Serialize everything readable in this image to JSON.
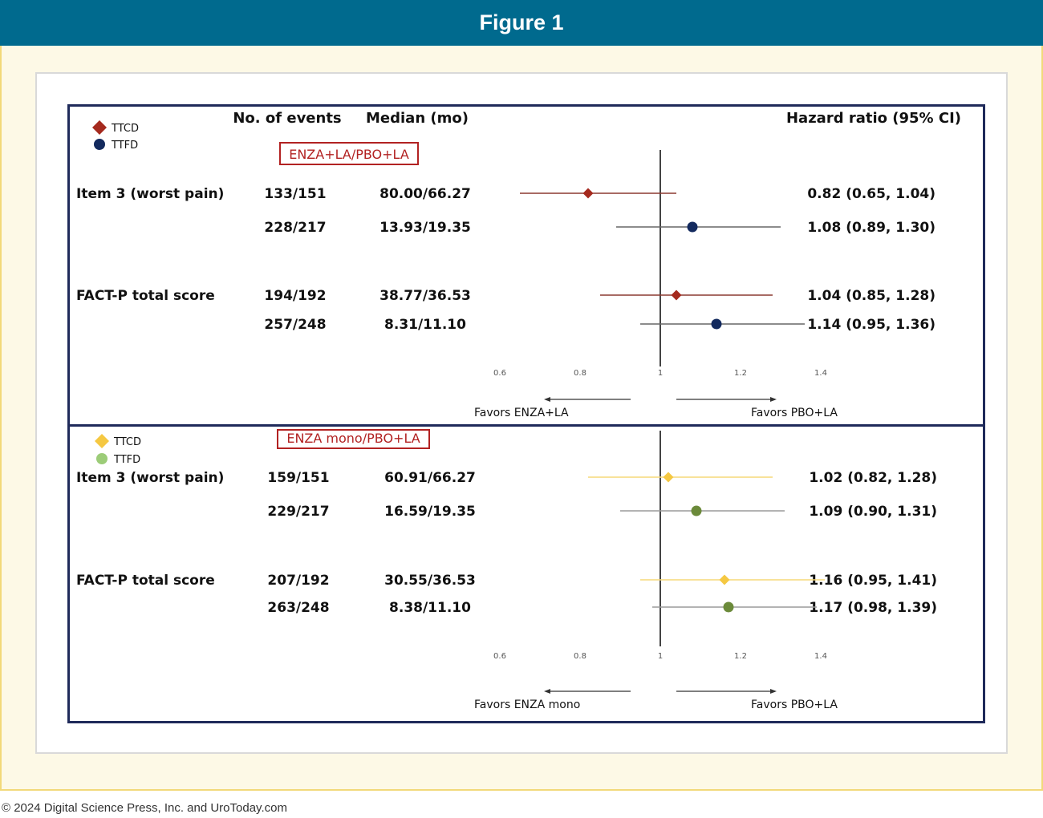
{
  "header": {
    "title": "Figure 1"
  },
  "footer": {
    "copyright": "© 2024 Digital Science Press, Inc. and UroToday.com"
  },
  "chart_data": {
    "type": "forest",
    "column_headers": {
      "events": "No. of events",
      "median": "Median (mo)",
      "hr": "Hazard ratio (95% CI)"
    },
    "x_ticks": [
      "0.6",
      "0.8",
      "1",
      "1.2",
      "1.4"
    ],
    "xlim": [
      0.6,
      1.4
    ],
    "reference_line": 1,
    "panels": [
      {
        "comparison": "ENZA+LA/PBO+LA",
        "legend": [
          {
            "label": "TTCD",
            "marker": "diamond",
            "color": "#a52a1e"
          },
          {
            "label": "TTFD",
            "marker": "circle",
            "color": "#132a5e"
          }
        ],
        "favors_left": "Favors ENZA+LA",
        "favors_right": "Favors PBO+LA",
        "line_colors": {
          "TTCD": "#8b3a30",
          "TTFD": "#666666"
        },
        "rows": [
          {
            "outcome": "Item 3 (worst pain)",
            "series": "TTCD",
            "events": "133/151",
            "median": "80.00/66.27",
            "hr": 0.82,
            "lo": 0.65,
            "hi": 1.04,
            "hr_text": "0.82 (0.65, 1.04)"
          },
          {
            "outcome": "",
            "series": "TTFD",
            "events": "228/217",
            "median": "13.93/19.35",
            "hr": 1.08,
            "lo": 0.89,
            "hi": 1.3,
            "hr_text": "1.08 (0.89, 1.30)"
          },
          {
            "outcome": "FACT-P total score",
            "series": "TTCD",
            "events": "194/192",
            "median": "38.77/36.53",
            "hr": 1.04,
            "lo": 0.85,
            "hi": 1.28,
            "hr_text": "1.04 (0.85, 1.28)"
          },
          {
            "outcome": "",
            "series": "TTFD",
            "events": "257/248",
            "median": "8.31/11.10",
            "hr": 1.14,
            "lo": 0.95,
            "hi": 1.36,
            "hr_text": "1.14 (0.95, 1.36)"
          }
        ]
      },
      {
        "comparison": "ENZA mono/PBO+LA",
        "legend": [
          {
            "label": "TTCD",
            "marker": "diamond",
            "color": "#f5c842"
          },
          {
            "label": "TTFD",
            "marker": "circle",
            "color": "#9ccc78"
          }
        ],
        "favors_left": "Favors ENZA mono",
        "favors_right": "Favors PBO+LA",
        "line_colors": {
          "TTCD": "#f5d878",
          "TTFD": "#9a9a9a"
        },
        "marker_colors": {
          "TTCD": "#f5c842",
          "TTFD": "#6b8a3a"
        },
        "rows": [
          {
            "outcome": "Item 3 (worst pain)",
            "series": "TTCD",
            "events": "159/151",
            "median": "60.91/66.27",
            "hr": 1.02,
            "lo": 0.82,
            "hi": 1.28,
            "hr_text": "1.02 (0.82, 1.28)"
          },
          {
            "outcome": "",
            "series": "TTFD",
            "events": "229/217",
            "median": "16.59/19.35",
            "hr": 1.09,
            "lo": 0.9,
            "hi": 1.31,
            "hr_text": "1.09 (0.90, 1.31)"
          },
          {
            "outcome": "FACT-P total score",
            "series": "TTCD",
            "events": "207/192",
            "median": "30.55/36.53",
            "hr": 1.16,
            "lo": 0.95,
            "hi": 1.41,
            "hr_text": "1.16 (0.95, 1.41)"
          },
          {
            "outcome": "",
            "series": "TTFD",
            "events": "263/248",
            "median": "8.38/11.10",
            "hr": 1.17,
            "lo": 0.98,
            "hi": 1.39,
            "hr_text": "1.17 (0.98, 1.39)"
          }
        ]
      }
    ]
  }
}
